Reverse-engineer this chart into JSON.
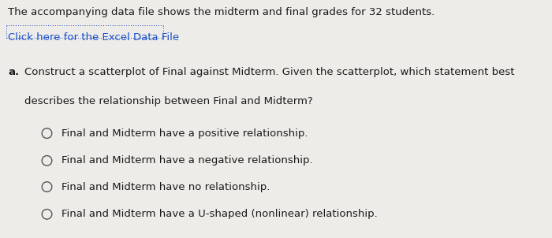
{
  "background_color": "#eeece8",
  "line1": "The accompanying data file shows the midterm and final grades for 32 students.",
  "line2": "Click here for the Excel Data File",
  "question_label": "a.",
  "question_text1": "Construct a scatterplot of Final against Midterm. Given the scatterplot, which statement best",
  "question_text2": "describes the relationship between Final and Midterm?",
  "options": [
    "Final and Midterm have a positive relationship.",
    "Final and Midterm have a negative relationship.",
    "Final and Midterm have no relationship.",
    "Final and Midterm have a U-shaped (nonlinear) relationship."
  ],
  "body_fontsize": 9.5,
  "option_fontsize": 9.5,
  "text_color": "#1a1a1a",
  "link_color": "#1a4fcc",
  "circle_color": "#555555"
}
